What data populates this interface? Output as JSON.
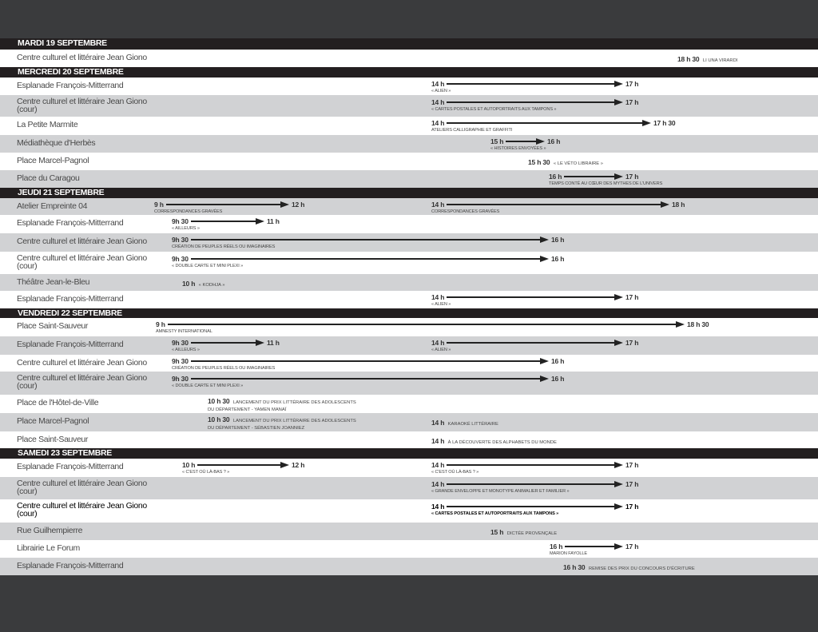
{
  "colors": {
    "header": "#231f20",
    "row_gray": "#d1d2d4",
    "background": "#3a3b3d"
  },
  "days": [
    {
      "label": "MARDI 19 SEPTEMBRE",
      "rows": [
        {
          "place": "Centre culturel et littéraire Jean Giono",
          "events": [
            {
              "start": "18 h 30",
              "text": "Li una virardi"
            }
          ]
        }
      ]
    },
    {
      "label": "MERCREDI 20 SEPTEMBRE",
      "rows": [
        {
          "place": "Esplanade François-Mitterrand",
          "events": [
            {
              "start": "14 h",
              "end": "17 h",
              "text": "« Alien »"
            }
          ]
        },
        {
          "place": "Centre culturel et littéraire Jean Giono",
          "place2": "(cour)",
          "events": [
            {
              "start": "14 h",
              "end": "17 h",
              "text": "« Cartes postales et autoportraits aux tampons »"
            }
          ]
        },
        {
          "place": "La Petite Marmite",
          "events": [
            {
              "start": "14 h",
              "end": "17 h 30",
              "text": "Ateliers calligraphie et graffiti"
            }
          ]
        },
        {
          "place": "Médiathèque d'Herbès",
          "events": [
            {
              "start": "15 h",
              "end": "16 h",
              "text": "« Histoires envoyées »"
            }
          ]
        },
        {
          "place": "Place Marcel-Pagnol",
          "events": [
            {
              "start": "15 h 30",
              "text": "« Le véto libraire »"
            }
          ]
        },
        {
          "place": "Place du Caragou",
          "events": [
            {
              "start": "16 h",
              "end": "17 h",
              "text": "Temps conté au cœur des mythes de l'univers"
            }
          ]
        }
      ]
    },
    {
      "label": "JEUDI 21 SEPTEMBRE",
      "rows": [
        {
          "place": "Atelier Empreinte 04",
          "events": [
            {
              "start": "9 h",
              "end": "12 h",
              "text": "Correspondances gravées"
            },
            {
              "start": "14 h",
              "end": "18 h",
              "text": "Correspondances gravées"
            }
          ]
        },
        {
          "place": "Esplanade François-Mitterrand",
          "events": [
            {
              "start": "9h 30",
              "end": "11 h",
              "text": "« Ailleurs »"
            }
          ]
        },
        {
          "place": "Centre culturel et littéraire Jean Giono",
          "events": [
            {
              "start": "9h 30",
              "end": "16 h",
              "text": "Création de peuples réels ou imaginaires"
            }
          ]
        },
        {
          "place": "Centre culturel et littéraire Jean Giono",
          "place2": "(cour)",
          "events": [
            {
              "start": "9h 30",
              "end": "16 h",
              "text": "« Double carte et mini plexi »"
            }
          ]
        },
        {
          "place": "Théâtre Jean-le-Bleu",
          "events": [
            {
              "start": "10 h",
              "text": "« Kodhja »"
            }
          ]
        },
        {
          "place": "Esplanade François-Mitterrand",
          "events": [
            {
              "start": "14 h",
              "end": "17 h",
              "text": "« Alien »"
            }
          ]
        }
      ]
    },
    {
      "label": "VENDREDI 22 SEPTEMBRE",
      "rows": [
        {
          "place": "Place Saint-Sauveur",
          "events": [
            {
              "start": "9 h",
              "end": "18 h 30",
              "text": "Amnesty International"
            }
          ]
        },
        {
          "place": "Esplanade François-Mitterrand",
          "events": [
            {
              "start": "9h 30",
              "end": "11 h",
              "text": "« Ailleurs »"
            },
            {
              "start": "14 h",
              "end": "17 h",
              "text": "« Alien »"
            }
          ]
        },
        {
          "place": "Centre culturel et littéraire Jean Giono",
          "events": [
            {
              "start": "9h 30",
              "end": "16 h",
              "text": "Création de peuples réels ou imaginaires"
            }
          ]
        },
        {
          "place": "Centre culturel et littéraire Jean Giono",
          "place2": "(cour)",
          "events": [
            {
              "start": "9h 30",
              "end": "16 h",
              "text": "« Double carte et mini plexi »"
            }
          ]
        },
        {
          "place": "Place de l'Hôtel-de-Ville",
          "events": [
            {
              "start": "10 h 30",
              "text": "Lancement du prix littéraire des adolescents",
              "text2": "du département - Yamen Manaï"
            }
          ]
        },
        {
          "place": "Place Marcel-Pagnol",
          "events": [
            {
              "start": "10 h 30",
              "text": "Lancement du prix littéraire des adolescents",
              "text2": "du département - Sébastien Joanniez"
            },
            {
              "start": "14 h",
              "text": "Karaoké littéraire"
            }
          ]
        },
        {
          "place": "Place Saint-Sauveur",
          "events": [
            {
              "start": "14 h",
              "text": "À la découverte des alphabets du monde"
            }
          ]
        }
      ]
    },
    {
      "label": "SAMEDI 23 SEPTEMBRE",
      "rows": [
        {
          "place": "Esplanade François-Mitterrand",
          "events": [
            {
              "start": "10 h",
              "end": "12 h",
              "text": "« C'est où là-bas ? »"
            },
            {
              "start": "14 h",
              "end": "17 h",
              "text": "« C'est où là-bas ? »"
            }
          ]
        },
        {
          "place": "Centre culturel et littéraire Jean Giono",
          "place2": "(cour)",
          "events": [
            {
              "start": "14 h",
              "end": "17 h",
              "text": "« Grande enveloppe et monotype animalier et familier »"
            }
          ]
        },
        {
          "place": "Centre culturel et littéraire Jean Giono",
          "place2": "(cour)",
          "emphasis": true,
          "events": [
            {
              "start": "14 h",
              "end": "17 h",
              "text": "« Cartes postales et autoportraits aux tampons »"
            }
          ]
        },
        {
          "place": "Rue Guilhempierre",
          "events": [
            {
              "start": "15 h",
              "text": "Dictée provençale"
            }
          ]
        },
        {
          "place": "Librairie Le Forum",
          "events": [
            {
              "start": "16 h",
              "end": "17 h",
              "text": "Marion Fayolle"
            }
          ]
        },
        {
          "place": "Esplanade François-Mitterrand",
          "events": [
            {
              "start": "16 h 30",
              "text": "Remise des prix du concours d'écriture"
            }
          ]
        }
      ]
    }
  ]
}
